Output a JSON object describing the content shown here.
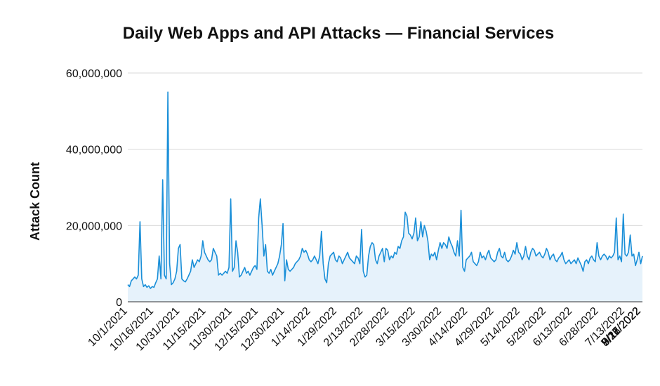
{
  "chart_data": {
    "type": "area",
    "title": "Daily Web Apps and API Attacks — Financial Services",
    "xlabel": "",
    "ylabel": "Attack Count",
    "ylim": [
      0,
      60000000
    ],
    "yticks": [
      0,
      20000000,
      40000000,
      60000000
    ],
    "ytick_labels": [
      "0",
      "20,000,000",
      "40,000,000",
      "60,000,000"
    ],
    "xtick_labels": [
      "10/1/2021",
      "10/16/2021",
      "10/31/2021",
      "11/15/2021",
      "11/30/2021",
      "12/15/2021",
      "12/30/2021",
      "1/14/2022",
      "1/29/2022",
      "2/13/2022",
      "2/28/2022",
      "3/15/2022",
      "3/30/2022",
      "4/14/2022",
      "4/29/2022",
      "5/14/2022",
      "5/29/2022",
      "6/13/2022",
      "6/28/2022",
      "7/13/2022",
      "7/28/2022",
      "8/12/2022",
      "8/27/2022",
      "9/11/2022",
      "9/26/2022"
    ],
    "grid": true,
    "legend": "none",
    "colors": {
      "line": "#1a8fd8",
      "fill": "#e6f2fb",
      "grid": "#d9d9d9"
    },
    "series": [
      {
        "start_date": "10/1/2021",
        "values": [
          4500000,
          4000000,
          5500000,
          6000000,
          6500000,
          6000000,
          7000000,
          21000000,
          6000000,
          4000000,
          4500000,
          3800000,
          4200000,
          3500000,
          4000000,
          3800000,
          5000000,
          6000000,
          12000000,
          6000000,
          32000000,
          7000000,
          6000000,
          55000000,
          10000000,
          4500000,
          5000000,
          6000000,
          8000000,
          14000000,
          15000000,
          6000000,
          5500000,
          5200000,
          6000000,
          7000000,
          8000000,
          11000000,
          9000000,
          10000000,
          11000000,
          10500000,
          12000000,
          16000000,
          13000000,
          12000000,
          11000000,
          10500000,
          11000000,
          14000000,
          13000000,
          12000000,
          7000000,
          7500000,
          7000000,
          7500000,
          8000000,
          7500000,
          9000000,
          27000000,
          8000000,
          9000000,
          16000000,
          13000000,
          6500000,
          7000000,
          8000000,
          9000000,
          7500000,
          8000000,
          7000000,
          8000000,
          9000000,
          9500000,
          8500000,
          22000000,
          27000000,
          20000000,
          12000000,
          15000000,
          8000000,
          7500000,
          8500000,
          7000000,
          8000000,
          9000000,
          10000000,
          12000000,
          15000000,
          20500000,
          5500000,
          11000000,
          8500000,
          8000000,
          8500000,
          9000000,
          10000000,
          10500000,
          11000000,
          12000000,
          14000000,
          13000000,
          13500000,
          12500000,
          11000000,
          10500000,
          11000000,
          12000000,
          11000000,
          10000000,
          12000000,
          18500000,
          10000000,
          6000000,
          5000000,
          10000000,
          12000000,
          12500000,
          13000000,
          11000000,
          10500000,
          12000000,
          11500000,
          10000000,
          11000000,
          12000000,
          13000000,
          11500000,
          11000000,
          10500000,
          10000000,
          12000000,
          11500000,
          10000000,
          19000000,
          8000000,
          6500000,
          7000000,
          12000000,
          14500000,
          15500000,
          15000000,
          11000000,
          10000000,
          12000000,
          13000000,
          14000000,
          10500000,
          14000000,
          13500000,
          11000000,
          12000000,
          11500000,
          13000000,
          12500000,
          14500000,
          14000000,
          16000000,
          17000000,
          23500000,
          22500000,
          18000000,
          17500000,
          16500000,
          18000000,
          22000000,
          16000000,
          17000000,
          21000000,
          17000000,
          20000000,
          18500000,
          16000000,
          11000000,
          12500000,
          12000000,
          13000000,
          11000000,
          13500000,
          15500000,
          14000000,
          15500000,
          15000000,
          14000000,
          17000000,
          15500000,
          14500000,
          13000000,
          12000000,
          16000000,
          12000000,
          24000000,
          9000000,
          8000000,
          11000000,
          11500000,
          12000000,
          13000000,
          10500000,
          10000000,
          9500000,
          10500000,
          13000000,
          11500000,
          12000000,
          11000000,
          12500000,
          13500000,
          11500000,
          11000000,
          10500000,
          11000000,
          13000000,
          14000000,
          12000000,
          11500000,
          13000000,
          11000000,
          10500000,
          11000000,
          12000000,
          13500000,
          12500000,
          15500000,
          13000000,
          12500000,
          11000000,
          12000000,
          14500000,
          12000000,
          11000000,
          13000000,
          14000000,
          13500000,
          12000000,
          12500000,
          13000000,
          12000000,
          11500000,
          12500000,
          14000000,
          13000000,
          11000000,
          12000000,
          12500000,
          11000000,
          10500000,
          11500000,
          12000000,
          13000000,
          11000000,
          10000000,
          10500000,
          11000000,
          10000000,
          10500000,
          11000000,
          10000000,
          11500000,
          10500000,
          9500000,
          8000000,
          10500000,
          11000000,
          10000000,
          11500000,
          12000000,
          11000000,
          10500000,
          15500000,
          12000000,
          11000000,
          12000000,
          12500000,
          12000000,
          11000000,
          12000000,
          11500000,
          12000000,
          13000000,
          22000000,
          11000000,
          12000000,
          10500000,
          23000000,
          12500000,
          12000000,
          13000000,
          17500000,
          12000000,
          12500000,
          9500000,
          11000000,
          13000000,
          10000000,
          12000000
        ]
      }
    ]
  }
}
